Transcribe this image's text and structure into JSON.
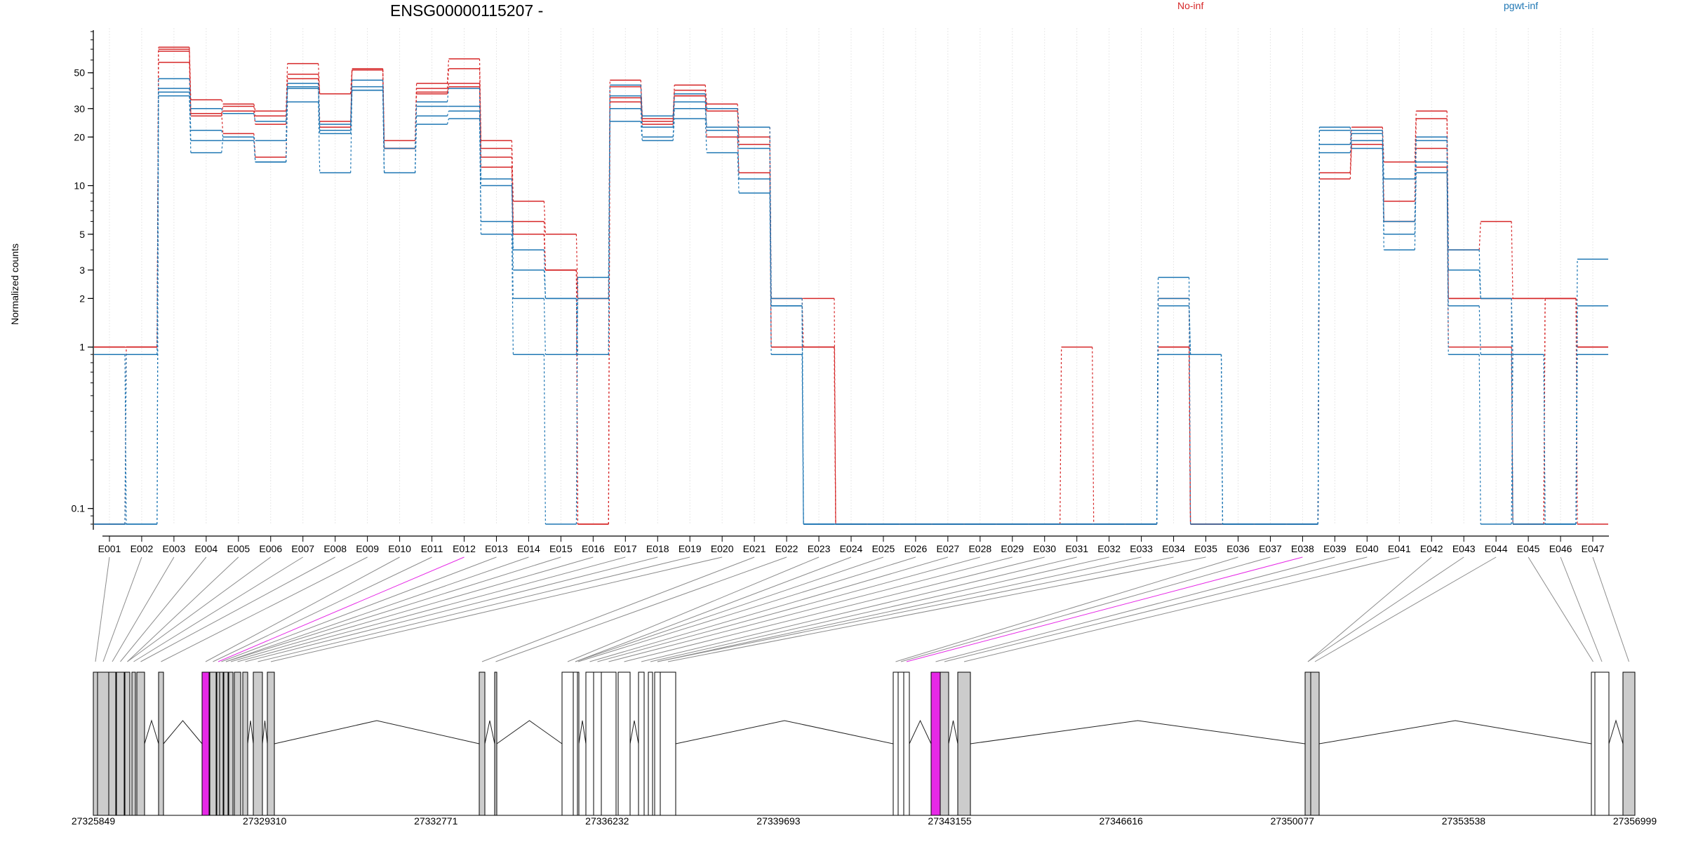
{
  "chart_data": {
    "type": "line",
    "title": "ENSG00000115207 -",
    "ylabel": "Normalized counts",
    "yscale": "log",
    "ylim": [
      0.08,
      90
    ],
    "yticks": [
      "0.1",
      "1",
      "2",
      "3",
      "5",
      "10",
      "20",
      "30",
      "50"
    ],
    "grid": "vertical-light",
    "legend_placement": "top",
    "categories": [
      "E001",
      "E002",
      "E003",
      "E004",
      "E005",
      "E006",
      "E007",
      "E008",
      "E009",
      "E010",
      "E011",
      "E012",
      "E013",
      "E014",
      "E015",
      "E016",
      "E017",
      "E018",
      "E019",
      "E020",
      "E021",
      "E022",
      "E023",
      "E024",
      "E025",
      "E026",
      "E027",
      "E028",
      "E029",
      "E030",
      "E031",
      "E032",
      "E033",
      "E034",
      "E035",
      "E036",
      "E037",
      "E038",
      "E039",
      "E040",
      "E041",
      "E042",
      "E043",
      "E044",
      "E045",
      "E046",
      "E047"
    ],
    "series": [
      {
        "name": "No-inf",
        "color": "#d62728",
        "values": [
          1,
          1,
          72,
          34,
          32,
          29,
          57,
          37,
          53,
          19,
          43,
          61,
          19,
          8,
          5,
          2,
          45,
          27,
          42,
          32,
          23,
          2,
          2,
          0.08,
          0.08,
          0.08,
          0.08,
          0.08,
          0.08,
          0.08,
          1,
          0.08,
          0.08,
          2,
          0.08,
          0.08,
          0.08,
          0.08,
          18,
          23,
          14,
          29,
          4,
          6,
          2,
          2,
          1
        ]
      },
      {
        "name": "No-inf",
        "color": "#d62728",
        "values": [
          1,
          1,
          68,
          28,
          31,
          27,
          49,
          37,
          52,
          17,
          40,
          53,
          17,
          6,
          3,
          2,
          41,
          26,
          39,
          30,
          20,
          2,
          1,
          0.08,
          0.08,
          0.08,
          0.08,
          0.08,
          0.08,
          0.08,
          0.08,
          0.08,
          0.08,
          1,
          0.08,
          0.08,
          0.08,
          0.08,
          12,
          22,
          8,
          26,
          2,
          2,
          0.08,
          2,
          1
        ]
      },
      {
        "name": "No-inf",
        "color": "#d62728",
        "values": [
          0.08,
          1,
          58,
          27,
          29,
          24,
          46,
          25,
          52,
          17,
          38,
          41,
          15,
          5,
          3,
          0.08,
          35,
          24,
          36,
          29,
          18,
          1,
          1,
          0.08,
          0.08,
          0.08,
          0.08,
          0.08,
          0.08,
          0.08,
          0.08,
          0.08,
          0.08,
          1,
          0.08,
          0.08,
          0.08,
          0.08,
          12,
          18,
          6,
          17,
          1,
          1,
          0.08,
          2,
          1
        ]
      },
      {
        "name": "No-inf",
        "color": "#d62728",
        "values": [
          1,
          1,
          70,
          28,
          21,
          15,
          43,
          23,
          52,
          17,
          37,
          43,
          13,
          5,
          3,
          0.08,
          33,
          25,
          36,
          20,
          12,
          1,
          1,
          0.08,
          0.08,
          0.08,
          0.08,
          0.08,
          0.08,
          0.08,
          0.08,
          0.08,
          0.08,
          1,
          0.08,
          0.08,
          0.08,
          0.08,
          11,
          18,
          6,
          13,
          2,
          2,
          2,
          2,
          0.08
        ]
      },
      {
        "name": "pgwt-inf",
        "color": "#1f77b4",
        "values": [
          0.9,
          0.9,
          46,
          30,
          28,
          25,
          43,
          24,
          45,
          17,
          33,
          40,
          11,
          4,
          2,
          0.9,
          42,
          27,
          37,
          30,
          23,
          2,
          0.08,
          0.08,
          0.08,
          0.08,
          0.08,
          0.08,
          0.08,
          0.08,
          0.08,
          0.08,
          0.08,
          2,
          0.9,
          0.08,
          0.08,
          0.08,
          22,
          22,
          11,
          20,
          3,
          2,
          0.9,
          0.08,
          1.8
        ]
      },
      {
        "name": "pgwt-inf",
        "color": "#1f77b4",
        "values": [
          0.08,
          0.9,
          40,
          22,
          20,
          19,
          41,
          22,
          41,
          12,
          31,
          31,
          10,
          3,
          2,
          0.9,
          36,
          23,
          33,
          23,
          17,
          1.8,
          0.08,
          0.08,
          0.08,
          0.08,
          0.08,
          0.08,
          0.08,
          0.08,
          0.08,
          0.08,
          0.08,
          1.8,
          0.9,
          0.08,
          0.08,
          0.08,
          18,
          21,
          6,
          19,
          4,
          2,
          0.08,
          0.08,
          0.9
        ]
      },
      {
        "name": "pgwt-inf",
        "color": "#1f77b4",
        "values": [
          0.08,
          0.08,
          38,
          19,
          19,
          14,
          40,
          21,
          39,
          12,
          27,
          29,
          6,
          2,
          0.9,
          2,
          30,
          20,
          30,
          22,
          11,
          1.8,
          0.08,
          0.08,
          0.08,
          0.08,
          0.08,
          0.08,
          0.08,
          0.08,
          0.08,
          0.08,
          0.08,
          0.9,
          0.9,
          0.08,
          0.08,
          0.08,
          16,
          19,
          5,
          14,
          1.8,
          0.9,
          0.08,
          0.08,
          3.5
        ]
      },
      {
        "name": "pgwt-inf",
        "color": "#1f77b4",
        "values": [
          0.9,
          0.08,
          36,
          16,
          20,
          14,
          33,
          12,
          39,
          12,
          24,
          26,
          5,
          0.9,
          0.08,
          2.7,
          25,
          19,
          26,
          16,
          9,
          0.9,
          0.08,
          0.08,
          0.08,
          0.08,
          0.08,
          0.08,
          0.08,
          0.08,
          0.08,
          0.08,
          0.08,
          2.7,
          0.08,
          0.08,
          0.08,
          0.08,
          23,
          17,
          4,
          12,
          0.9,
          0.08,
          0.9,
          0.08,
          0.9
        ]
      }
    ],
    "gene_model": {
      "coordinate_ticks": [
        "27325849",
        "27329310",
        "27332771",
        "27336232",
        "27339693",
        "27343155",
        "27346616",
        "27350077",
        "27353538",
        "27356999"
      ],
      "highlight_color": "#e628e6",
      "exon_fill_color": "#cccccc",
      "highlighted_exons": [
        "E012",
        "E038"
      ]
    }
  }
}
